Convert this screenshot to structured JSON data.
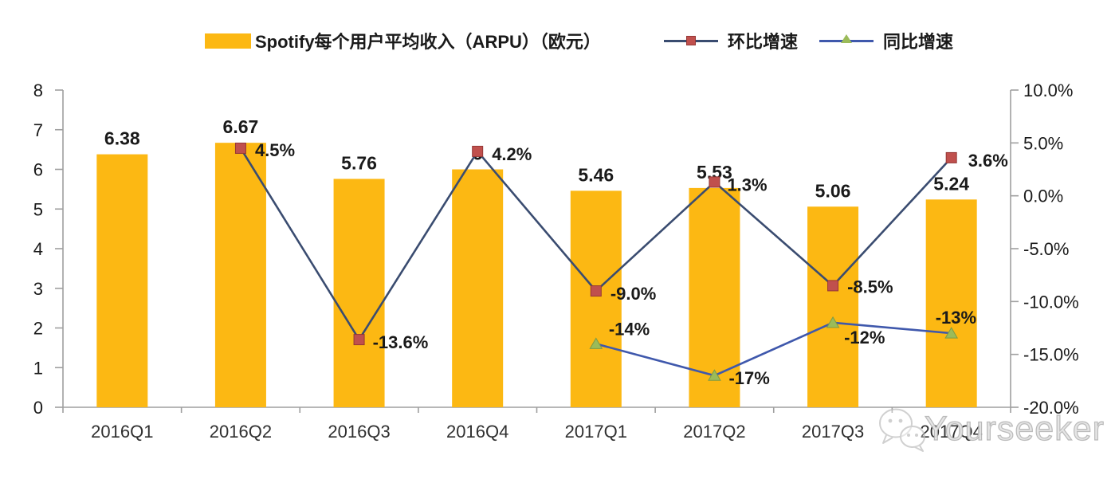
{
  "watermark": {
    "text": "Yourseeker",
    "icon": "wechat-icon"
  },
  "colors": {
    "bar": "#FCB813",
    "qoq_line": "#3A4C70",
    "qoq_marker": "#C0504D",
    "yoy_line": "#3F58AC",
    "yoy_marker": "#9BBB59",
    "axis": "#9F9F9F",
    "text": "#1A1A1A"
  },
  "chart_data": {
    "type": "bar",
    "subtype": "bar-line combo, dual axis",
    "title": "",
    "categories": [
      "2016Q1",
      "2016Q2",
      "2016Q3",
      "2016Q4",
      "2017Q1",
      "2017Q2",
      "2017Q3",
      "2017Q4"
    ],
    "series": [
      {
        "name": "Spotify每个用户平均收入（ARPU）（欧元）",
        "type": "bar",
        "axis": "left",
        "color": "#FCB813",
        "values": [
          6.38,
          6.67,
          5.76,
          6,
          5.46,
          5.53,
          5.06,
          5.24
        ],
        "labels": [
          "6.38",
          "6.67",
          "5.76",
          "6",
          "5.46",
          "5.53",
          "5.06",
          "5.24"
        ]
      },
      {
        "name": "环比增速",
        "type": "line",
        "axis": "right",
        "marker": "square",
        "line_color": "#3A4C70",
        "marker_color": "#C0504D",
        "values": [
          null,
          4.5,
          -13.6,
          4.2,
          -9.0,
          1.3,
          -8.5,
          3.6
        ],
        "labels": [
          "",
          "4.5%",
          "-13.6%",
          "4.2%",
          "-9.0%",
          "1.3%",
          "-8.5%",
          "3.6%"
        ]
      },
      {
        "name": "同比增速",
        "type": "line",
        "axis": "right",
        "marker": "triangle",
        "line_color": "#3F58AC",
        "marker_color": "#9BBB59",
        "values": [
          null,
          null,
          null,
          null,
          -14,
          -17,
          -12,
          -13
        ],
        "labels": [
          "",
          "",
          "",
          "",
          "-14%",
          "-17%",
          "-12%",
          "-13%"
        ]
      }
    ],
    "left_axis": {
      "min": 0,
      "max": 8,
      "step": 1,
      "ticks": [
        "0",
        "1",
        "2",
        "3",
        "4",
        "5",
        "6",
        "7",
        "8"
      ]
    },
    "right_axis": {
      "min": -20,
      "max": 10,
      "step": 5,
      "ticks": [
        "-20.0%",
        "-15.0%",
        "-10.0%",
        "-5.0%",
        "0.0%",
        "5.0%",
        "10.0%"
      ]
    },
    "grid": false,
    "legend_position": "top"
  }
}
